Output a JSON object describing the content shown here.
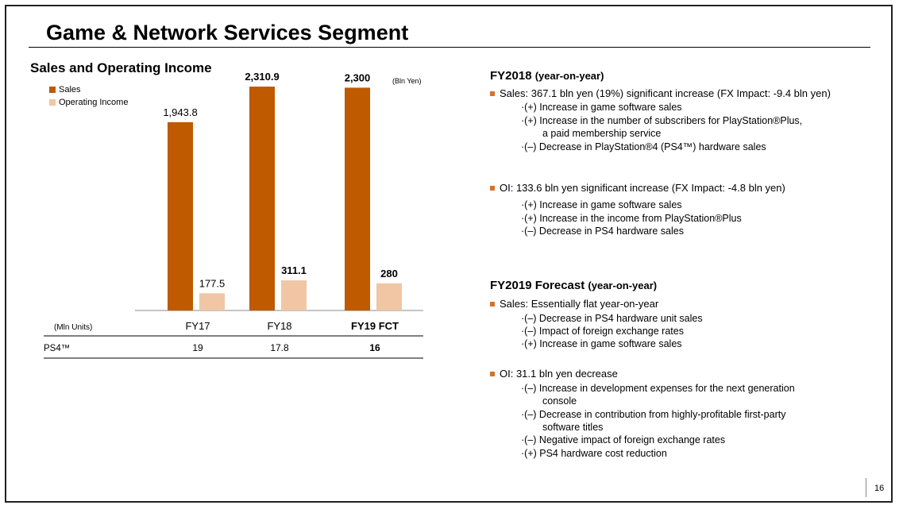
{
  "page": {
    "title": "Game & Network Services Segment",
    "page_number": "16"
  },
  "chart_data": {
    "type": "bar",
    "title": "Sales and Operating Income",
    "unit_label": "(Bln Yen)",
    "categories": [
      "FY17",
      "FY18",
      "FY19 FCT"
    ],
    "series": [
      {
        "name": "Sales",
        "values": [
          1943.8,
          2310.9,
          2300
        ],
        "labels": [
          "1,943.8",
          "2,310.9",
          "2,300"
        ],
        "color": "#bf5a00"
      },
      {
        "name": "Operating Income",
        "values": [
          177.5,
          311.1,
          280
        ],
        "labels": [
          "177.5",
          "311.1",
          "280"
        ],
        "color": "#f0c6a4"
      }
    ],
    "ylim": [
      0,
      2500
    ],
    "grid": false,
    "legend_position": "top-left",
    "bold_last_category": true
  },
  "table": {
    "header_label": "(Mln Units)",
    "row_label": "PS4™",
    "values": [
      "19",
      "17.8",
      "16"
    ]
  },
  "fy2018": {
    "title": "FY2018",
    "title_suffix": "(year-on-year)",
    "sales_bullet": "Sales: 367.1 bln yen (19%) significant increase (FX Impact: -9.4 bln yen)",
    "sales_items": [
      "·(+) Increase in game software sales",
      "·(+) Increase in the number of subscribers for PlayStation®Plus,",
      "a paid membership service",
      "·(–) Decrease in PlayStation®4 (PS4™) hardware sales"
    ],
    "oi_bullet": "OI: 133.6 bln yen significant increase (FX Impact: -4.8 bln yen)",
    "oi_items": [
      "·(+) Increase in game software sales",
      "·(+) Increase in the income from PlayStation®Plus",
      "·(–) Decrease in PS4 hardware sales"
    ]
  },
  "fy2019": {
    "title": "FY2019 Forecast",
    "title_suffix": "(year-on-year)",
    "sales_bullet": "Sales: Essentially flat year-on-year",
    "sales_items": [
      "·(–) Decrease in PS4 hardware unit sales",
      "·(–) Impact of foreign exchange rates",
      "·(+) Increase in game software sales"
    ],
    "oi_bullet": "OI: 31.1 bln yen decrease",
    "oi_items": [
      "·(–) Increase in development expenses for the next generation",
      "console",
      "·(–) Decrease in contribution from highly-profitable first-party",
      "software titles",
      "·(–) Negative impact of foreign exchange rates",
      "·(+) PS4 hardware cost reduction"
    ]
  },
  "colors": {
    "sales": "#bf5a00",
    "operating_income": "#f0c6a4",
    "bullet": "#d4722c"
  }
}
